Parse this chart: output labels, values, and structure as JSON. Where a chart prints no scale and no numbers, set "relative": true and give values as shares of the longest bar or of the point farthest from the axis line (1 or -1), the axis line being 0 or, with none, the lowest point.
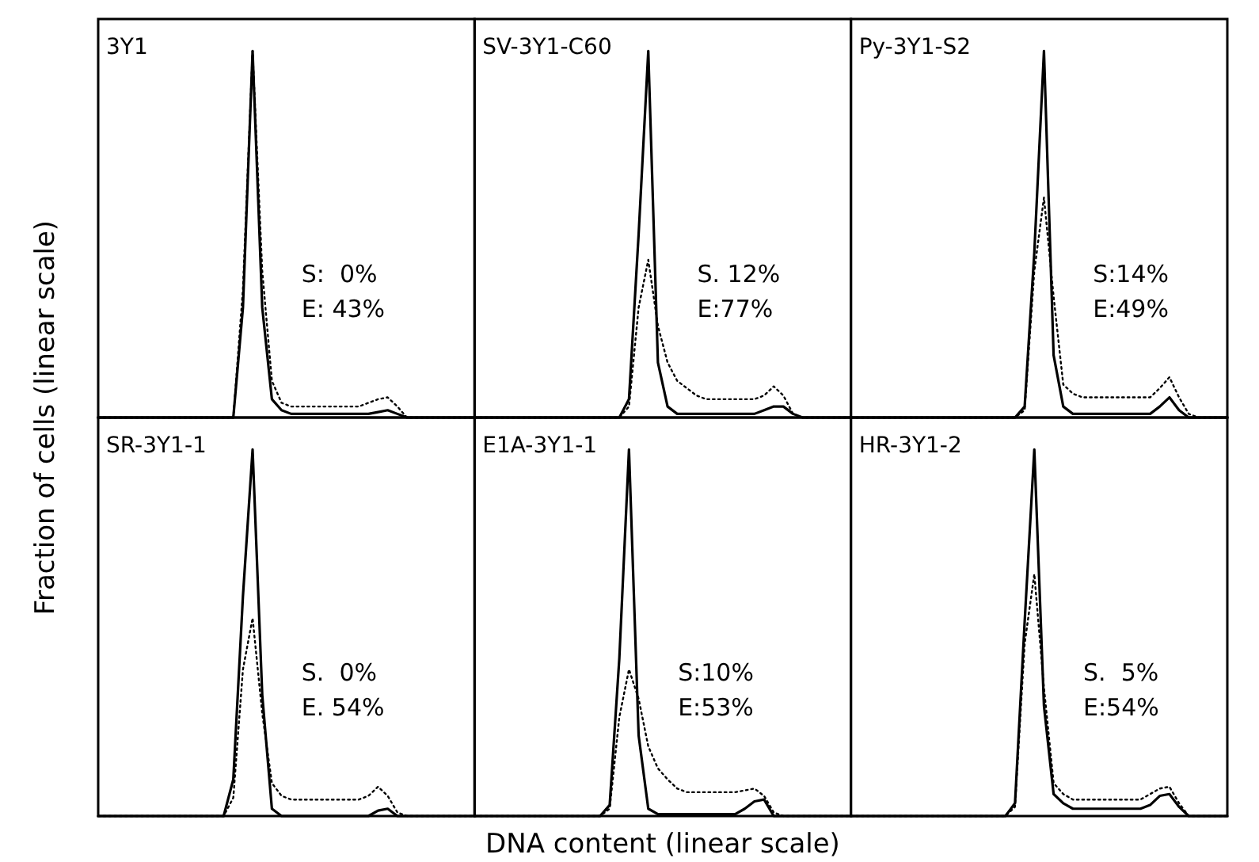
{
  "chart_data": [
    {
      "type": "line",
      "relative": true,
      "title": "3Y1",
      "ylabel": "Fraction of cells (linear scale)",
      "annotations": [
        "S:  0%",
        "E: 43%"
      ],
      "categories": [
        null,
        null,
        null,
        null,
        null,
        null,
        null,
        null,
        null,
        null,
        null,
        null,
        null,
        null,
        null,
        null,
        null,
        null,
        null,
        null,
        null,
        null,
        null,
        null,
        null,
        null,
        null,
        null,
        null,
        null,
        null,
        null,
        null,
        null,
        null,
        null,
        null,
        null,
        null,
        null
      ],
      "series": [
        {
          "color": "#000000",
          "line_style": "solid",
          "values": [
            0,
            0,
            0,
            0,
            0,
            0,
            0,
            0,
            0,
            0,
            0,
            0,
            0,
            0,
            0,
            0.3,
            1,
            0.3,
            0.05,
            0.02,
            0.01,
            0.01,
            0.01,
            0.01,
            0.01,
            0.01,
            0.01,
            0.01,
            0.01,
            0.015,
            0.02,
            0.01,
            0,
            0,
            0,
            0,
            0,
            0,
            0,
            0
          ]
        },
        {
          "color": "#000000",
          "line_style": "dotted",
          "values": [
            0,
            0,
            0,
            0,
            0,
            0,
            0,
            0,
            0,
            0,
            0,
            0,
            0,
            0,
            0,
            0.35,
            1,
            0.4,
            0.1,
            0.04,
            0.03,
            0.03,
            0.03,
            0.03,
            0.03,
            0.03,
            0.03,
            0.03,
            0.04,
            0.05,
            0.055,
            0.03,
            0,
            0,
            0,
            0,
            0,
            0,
            0,
            0
          ]
        }
      ]
    },
    {
      "type": "line",
      "relative": true,
      "title": "SV-3Y1-C60",
      "annotations": [
        "S. 12%",
        "E:77%"
      ],
      "categories": [
        null,
        null,
        null,
        null,
        null,
        null,
        null,
        null,
        null,
        null,
        null,
        null,
        null,
        null,
        null,
        null,
        null,
        null,
        null,
        null,
        null,
        null,
        null,
        null,
        null,
        null,
        null,
        null,
        null,
        null,
        null,
        null,
        null,
        null,
        null,
        null,
        null,
        null,
        null,
        null
      ],
      "series": [
        {
          "color": "#000000",
          "line_style": "solid",
          "values": [
            0,
            0,
            0,
            0,
            0,
            0,
            0,
            0,
            0,
            0,
            0,
            0,
            0,
            0,
            0,
            0,
            0.05,
            0.5,
            1,
            0.15,
            0.03,
            0.01,
            0.01,
            0.01,
            0.01,
            0.01,
            0.01,
            0.01,
            0.01,
            0.01,
            0.02,
            0.03,
            0.03,
            0.01,
            0,
            0,
            0,
            0,
            0,
            0
          ]
        },
        {
          "color": "#000000",
          "line_style": "dotted",
          "values": [
            0,
            0,
            0,
            0,
            0,
            0,
            0,
            0,
            0,
            0,
            0,
            0,
            0,
            0,
            0,
            0,
            0.03,
            0.3,
            0.43,
            0.25,
            0.15,
            0.1,
            0.08,
            0.06,
            0.05,
            0.05,
            0.05,
            0.05,
            0.05,
            0.05,
            0.06,
            0.085,
            0.06,
            0.01,
            0,
            0,
            0,
            0,
            0,
            0
          ]
        }
      ]
    },
    {
      "type": "line",
      "relative": true,
      "title": "Py-3Y1-S2",
      "annotations": [
        "S:14%",
        "E:49%"
      ],
      "categories": [
        null,
        null,
        null,
        null,
        null,
        null,
        null,
        null,
        null,
        null,
        null,
        null,
        null,
        null,
        null,
        null,
        null,
        null,
        null,
        null,
        null,
        null,
        null,
        null,
        null,
        null,
        null,
        null,
        null,
        null,
        null,
        null,
        null,
        null,
        null,
        null,
        null,
        null,
        null,
        null
      ],
      "series": [
        {
          "color": "#000000",
          "line_style": "solid",
          "values": [
            0,
            0,
            0,
            0,
            0,
            0,
            0,
            0,
            0,
            0,
            0,
            0,
            0,
            0,
            0,
            0,
            0,
            0,
            0.03,
            0.45,
            1,
            0.17,
            0.03,
            0.01,
            0.01,
            0.01,
            0.01,
            0.01,
            0.01,
            0.01,
            0.01,
            0.01,
            0.03,
            0.055,
            0.02,
            0,
            0,
            0,
            0,
            0
          ]
        },
        {
          "color": "#000000",
          "line_style": "dotted",
          "values": [
            0,
            0,
            0,
            0,
            0,
            0,
            0,
            0,
            0,
            0,
            0,
            0,
            0,
            0,
            0,
            0,
            0,
            0,
            0.02,
            0.4,
            0.6,
            0.33,
            0.09,
            0.065,
            0.055,
            0.055,
            0.055,
            0.055,
            0.055,
            0.055,
            0.055,
            0.055,
            0.08,
            0.11,
            0.055,
            0.01,
            0,
            0,
            0,
            0
          ]
        }
      ]
    },
    {
      "type": "line",
      "relative": true,
      "title": "SR-3Y1-1",
      "annotations": [
        "S.  0%",
        "E. 54%"
      ],
      "categories": [
        null,
        null,
        null,
        null,
        null,
        null,
        null,
        null,
        null,
        null,
        null,
        null,
        null,
        null,
        null,
        null,
        null,
        null,
        null,
        null,
        null,
        null,
        null,
        null,
        null,
        null,
        null,
        null,
        null,
        null,
        null,
        null,
        null,
        null,
        null,
        null,
        null,
        null,
        null,
        null
      ],
      "series": [
        {
          "color": "#000000",
          "line_style": "solid",
          "values": [
            0,
            0,
            0,
            0,
            0,
            0,
            0,
            0,
            0,
            0,
            0,
            0,
            0,
            0,
            0.1,
            0.6,
            1,
            0.33,
            0.02,
            0,
            0,
            0,
            0,
            0,
            0,
            0,
            0,
            0,
            0,
            0.015,
            0.02,
            0,
            0,
            0,
            0,
            0,
            0,
            0,
            0,
            0
          ]
        },
        {
          "color": "#000000",
          "line_style": "dotted",
          "values": [
            0,
            0,
            0,
            0,
            0,
            0,
            0,
            0,
            0,
            0,
            0,
            0,
            0,
            0,
            0.05,
            0.4,
            0.54,
            0.28,
            0.09,
            0.055,
            0.045,
            0.045,
            0.045,
            0.045,
            0.045,
            0.045,
            0.045,
            0.045,
            0.055,
            0.08,
            0.055,
            0.01,
            0,
            0,
            0,
            0,
            0,
            0,
            0,
            0
          ]
        }
      ]
    },
    {
      "type": "line",
      "relative": true,
      "title": "E1A-3Y1-1",
      "xlabel": "DNA content (linear scale)",
      "annotations": [
        "S:10%",
        "E:53%"
      ],
      "categories": [
        null,
        null,
        null,
        null,
        null,
        null,
        null,
        null,
        null,
        null,
        null,
        null,
        null,
        null,
        null,
        null,
        null,
        null,
        null,
        null,
        null,
        null,
        null,
        null,
        null,
        null,
        null,
        null,
        null,
        null,
        null,
        null,
        null,
        null,
        null,
        null,
        null,
        null,
        null,
        null
      ],
      "series": [
        {
          "color": "#000000",
          "line_style": "solid",
          "values": [
            0,
            0,
            0,
            0,
            0,
            0,
            0,
            0,
            0,
            0,
            0,
            0,
            0,
            0,
            0.03,
            0.43,
            1,
            0.22,
            0.02,
            0.005,
            0.005,
            0.005,
            0.005,
            0.005,
            0.005,
            0.005,
            0.005,
            0.005,
            0.02,
            0.04,
            0.045,
            0,
            0,
            0,
            0,
            0,
            0,
            0,
            0,
            0
          ]
        },
        {
          "color": "#000000",
          "line_style": "dotted",
          "values": [
            0,
            0,
            0,
            0,
            0,
            0,
            0,
            0,
            0,
            0,
            0,
            0,
            0,
            0,
            0.02,
            0.27,
            0.4,
            0.32,
            0.19,
            0.13,
            0.1,
            0.075,
            0.065,
            0.065,
            0.065,
            0.065,
            0.065,
            0.065,
            0.07,
            0.075,
            0.055,
            0.01,
            0,
            0,
            0,
            0,
            0,
            0,
            0,
            0
          ]
        }
      ]
    },
    {
      "type": "line",
      "relative": true,
      "title": "HR-3Y1-2",
      "annotations": [
        "S.  5%",
        "E:54%"
      ],
      "categories": [
        null,
        null,
        null,
        null,
        null,
        null,
        null,
        null,
        null,
        null,
        null,
        null,
        null,
        null,
        null,
        null,
        null,
        null,
        null,
        null,
        null,
        null,
        null,
        null,
        null,
        null,
        null,
        null,
        null,
        null,
        null,
        null,
        null,
        null,
        null,
        null,
        null,
        null,
        null,
        null
      ],
      "series": [
        {
          "color": "#000000",
          "line_style": "solid",
          "values": [
            0,
            0,
            0,
            0,
            0,
            0,
            0,
            0,
            0,
            0,
            0,
            0,
            0,
            0,
            0,
            0,
            0,
            0.035,
            0.53,
            1,
            0.3,
            0.06,
            0.035,
            0.02,
            0.02,
            0.02,
            0.02,
            0.02,
            0.02,
            0.02,
            0.02,
            0.03,
            0.055,
            0.06,
            0.025,
            0,
            0,
            0,
            0,
            0
          ]
        },
        {
          "color": "#000000",
          "line_style": "dotted",
          "values": [
            0,
            0,
            0,
            0,
            0,
            0,
            0,
            0,
            0,
            0,
            0,
            0,
            0,
            0,
            0,
            0,
            0,
            0.025,
            0.47,
            0.66,
            0.35,
            0.09,
            0.06,
            0.045,
            0.045,
            0.045,
            0.045,
            0.045,
            0.045,
            0.045,
            0.045,
            0.06,
            0.075,
            0.08,
            0.035,
            0,
            0,
            0,
            0,
            0
          ]
        }
      ]
    }
  ]
}
